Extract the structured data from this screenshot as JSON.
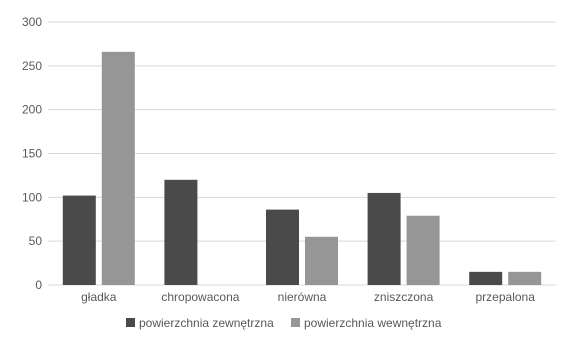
{
  "chart_data": {
    "type": "bar",
    "title": "",
    "xlabel": "",
    "ylabel": "",
    "categories": [
      "gładka",
      "chropowacona",
      "nierówna",
      "zniszczona",
      "przepalona"
    ],
    "series": [
      {
        "name": "powierzchnia zewnętrzna",
        "color": "#4a4a4a",
        "values": [
          102,
          120,
          86,
          105,
          15
        ]
      },
      {
        "name": "powierzchnia wewnętrzna",
        "color": "#969696",
        "values": [
          266,
          0,
          55,
          79,
          15
        ]
      }
    ],
    "ylim": [
      0,
      300
    ],
    "yticks": [
      "0",
      "50",
      "100",
      "150",
      "200",
      "250",
      "300"
    ],
    "grid": true,
    "legend_position": "bottom"
  }
}
